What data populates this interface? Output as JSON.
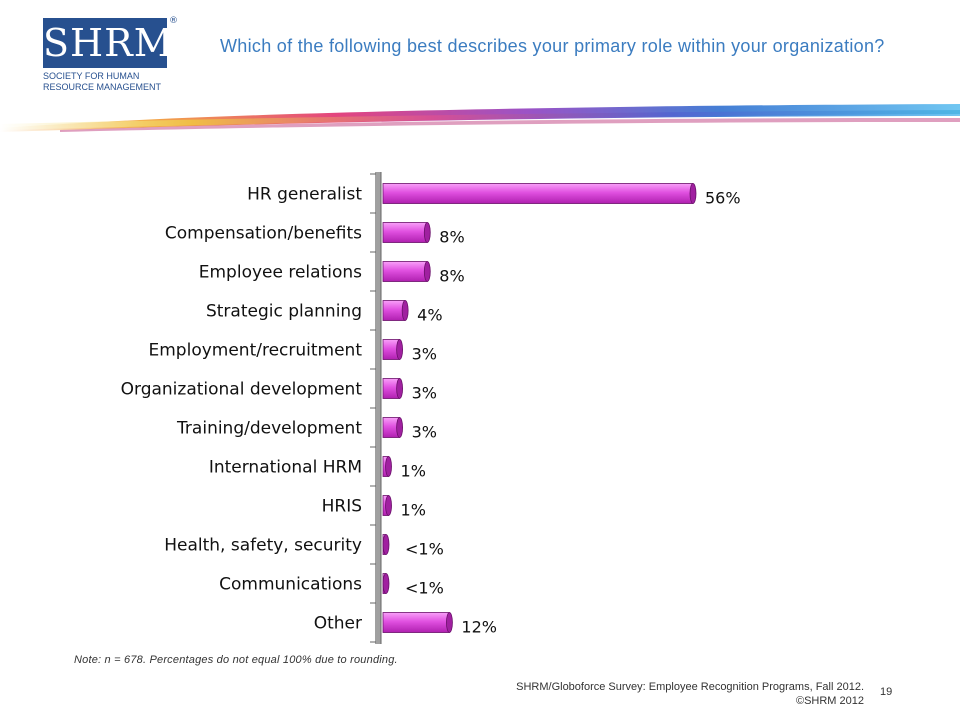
{
  "logo": {
    "mark": "SHRM",
    "registered": "®",
    "line1": "SOCIETY FOR HUMAN",
    "line2": "RESOURCE MANAGEMENT"
  },
  "header": {
    "question": "Which of the following best describes your primary role within your organization?"
  },
  "colors": {
    "bar_fill": "#e060e0",
    "bar_dark": "#a020a0",
    "question_text": "#3b7cc0",
    "logo_blue": "#27508f"
  },
  "chart_data": {
    "type": "bar",
    "orientation": "horizontal",
    "categories": [
      "HR generalist",
      "Compensation/benefits",
      "Employee relations",
      "Strategic planning",
      "Employment/recruitment",
      "Organizational development",
      "Training/development",
      "International HRM",
      "HRIS",
      "Health, safety, security",
      "Communications",
      "Other"
    ],
    "values": [
      56,
      8,
      8,
      4,
      3,
      3,
      3,
      1,
      1,
      0.4,
      0.4,
      12
    ],
    "data_labels": [
      "56%",
      "8%",
      "8%",
      "4%",
      "3%",
      "3%",
      "3%",
      "1%",
      "1%",
      "<1%",
      "<1%",
      "12%"
    ],
    "xlim": [
      0,
      60
    ],
    "grid": false,
    "legend": "none"
  },
  "footer": {
    "note": "Note: n = 678. Percentages do not equal 100% due to rounding.",
    "source_line1": "SHRM/Globoforce Survey: Employee Recognition Programs, Fall 2012.",
    "source_line2": "©SHRM 2012",
    "page_number": "19"
  }
}
